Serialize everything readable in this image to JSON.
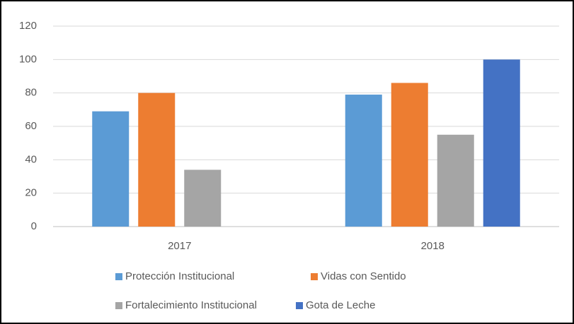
{
  "chart_data": {
    "type": "bar",
    "categories": [
      "2017",
      "2018"
    ],
    "series": [
      {
        "name": "Protección Institucional",
        "color": "#5b9bd5",
        "values": [
          69,
          79
        ]
      },
      {
        "name": "Vidas con Sentido",
        "color": "#ed7d31",
        "values": [
          80,
          86
        ]
      },
      {
        "name": "Fortalecimiento Institucional",
        "color": "#a5a5a5",
        "values": [
          34,
          55
        ]
      },
      {
        "name": "Gota de Leche",
        "color": "#4472c4",
        "values": [
          null,
          100
        ]
      }
    ],
    "ylim": [
      0,
      120
    ],
    "yticks": [
      0,
      20,
      40,
      60,
      80,
      100,
      120
    ],
    "grid": true,
    "legend": "bottom"
  }
}
